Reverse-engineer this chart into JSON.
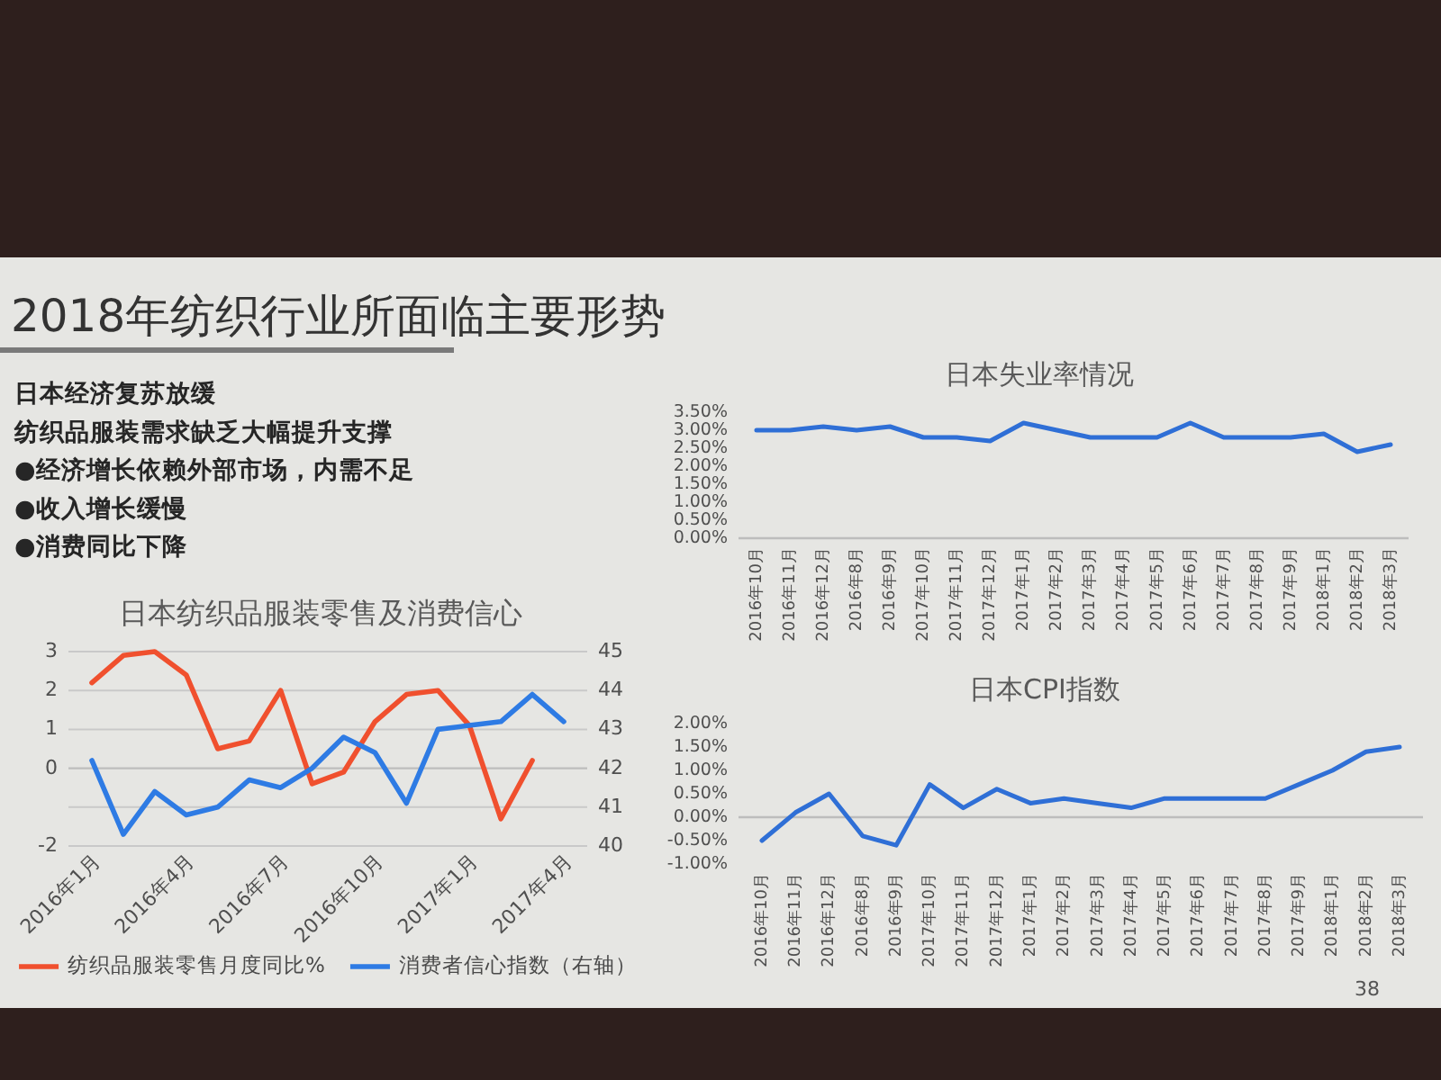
{
  "chart_data": [
    {
      "type": "other",
      "title": "2018年纺织行业所面临主要形势",
      "annotations": [
        "日本经济复苏放缓",
        "纺织品服装需求缺乏大幅提升支撑",
        "●经济增长依赖外部市场，内需不足",
        "●收入增长缓慢",
        "●消费同比下降",
        "38"
      ]
    },
    {
      "type": "line",
      "title": "日本纺织品服装零售及消费信心",
      "categories": [
        "2016年1月",
        null,
        null,
        "2016年4月",
        null,
        null,
        "2016年7月",
        null,
        null,
        "2016年10月",
        null,
        null,
        "2017年1月",
        null,
        null,
        "2017年4月"
      ],
      "series": [
        {
          "name": "纺织品服装零售月度同比%",
          "color": "#f0502e",
          "values": [
            2.2,
            2.9,
            3.0,
            2.4,
            0.5,
            0.7,
            2.0,
            -0.4,
            -0.1,
            1.2,
            1.9,
            2.0,
            1.1,
            -1.3,
            0.2,
            null
          ]
        },
        {
          "name": "消费者信心指数（右轴）",
          "color": "#2e7be4",
          "axis": "y2",
          "values": [
            42.2,
            40.3,
            41.4,
            40.8,
            41.0,
            41.7,
            41.5,
            42.0,
            42.8,
            42.4,
            41.1,
            43.0,
            43.1,
            43.2,
            43.9,
            43.2
          ]
        }
      ],
      "ylim": [
        -2,
        3
      ],
      "yticks": [
        -2,
        {
          "value": -1,
          "label": null
        },
        0,
        1,
        2,
        3
      ],
      "y2lim": [
        40,
        45
      ],
      "y2ticks": [
        40,
        41,
        42,
        43,
        44,
        45
      ],
      "grid": "y",
      "legend": "bottom"
    },
    {
      "type": "line",
      "title": "日本失业率情况",
      "categories": [
        "2016年10月",
        "2016年11月",
        "2016年12月",
        "2016年8月",
        "2016年9月",
        "2017年10月",
        "2017年11月",
        "2017年12月",
        "2017年1月",
        "2017年2月",
        "2017年3月",
        "2017年4月",
        "2017年5月",
        "2017年6月",
        "2017年7月",
        "2017年8月",
        "2017年9月",
        "2018年1月",
        "2018年2月",
        "2018年3月"
      ],
      "values": [
        3.0,
        3.0,
        3.1,
        3.0,
        3.1,
        2.8,
        2.8,
        2.7,
        3.2,
        3.0,
        2.8,
        2.8,
        2.8,
        3.2,
        2.8,
        2.8,
        2.8,
        2.9,
        2.4,
        2.6
      ],
      "color": "#2f6fd6",
      "ylim": [
        0,
        3.5
      ],
      "yticks": [
        {
          "value": 0,
          "label": "0.00%"
        },
        {
          "value": 0.5,
          "label": "0.50%"
        },
        {
          "value": 1,
          "label": "1.00%"
        },
        {
          "value": 1.5,
          "label": "1.50%"
        },
        {
          "value": 2,
          "label": "2.00%"
        },
        {
          "value": 2.5,
          "label": "2.50%"
        },
        {
          "value": 3,
          "label": "3.00%"
        },
        {
          "value": 3.5,
          "label": "3.50%"
        }
      ]
    },
    {
      "type": "line",
      "title": "日本CPI指数",
      "categories": [
        "2016年10月",
        "2016年11月",
        "2016年12月",
        "2016年8月",
        "2016年9月",
        "2017年10月",
        "2017年11月",
        "2017年12月",
        "2017年1月",
        "2017年2月",
        "2017年3月",
        "2017年4月",
        "2017年5月",
        "2017年6月",
        "2017年7月",
        "2017年8月",
        "2017年9月",
        "2018年1月",
        "2018年2月",
        "2018年3月"
      ],
      "values": [
        -0.5,
        0.1,
        0.5,
        -0.4,
        -0.6,
        0.7,
        0.2,
        0.6,
        0.3,
        0.4,
        0.3,
        0.2,
        0.4,
        0.4,
        0.4,
        0.4,
        0.7,
        1.0,
        1.4,
        1.5
      ],
      "color": "#2f6fd6",
      "ylim": [
        -1,
        2
      ],
      "yticks": [
        {
          "value": -1,
          "label": "-1.00%"
        },
        {
          "value": -0.5,
          "label": "-0.50%"
        },
        {
          "value": 0,
          "label": "0.00%"
        },
        {
          "value": 0.5,
          "label": "0.50%"
        },
        {
          "value": 1,
          "label": "1.00%"
        },
        {
          "value": 1.5,
          "label": "1.50%"
        },
        {
          "value": 2,
          "label": "2.00%"
        }
      ]
    }
  ]
}
